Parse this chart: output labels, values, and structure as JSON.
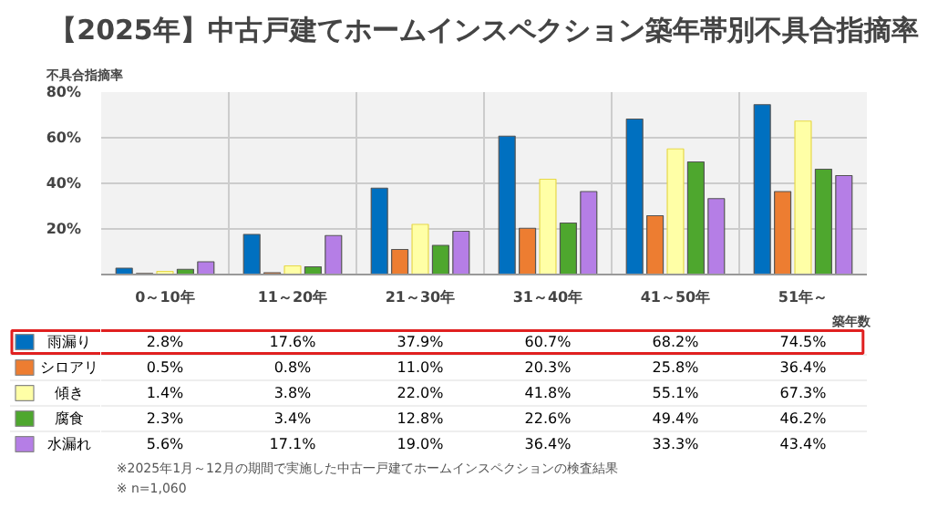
{
  "chart_data": {
    "type": "bar",
    "title": "【2025年】中古戸建てホームインスペクション築年帯別不具合指摘率",
    "ylabel": "不具合指摘率",
    "xlabel": "築年数",
    "categories": [
      "0～10年",
      "11～20年",
      "21～30年",
      "31～40年",
      "41～50年",
      "51年～"
    ],
    "ylim": [
      0,
      80
    ],
    "yticks": [
      {
        "value": 0,
        "label": null
      },
      {
        "value": 20,
        "label": "20%"
      },
      {
        "value": 40,
        "label": "40%"
      },
      {
        "value": 60,
        "label": "60%"
      },
      {
        "value": 80,
        "label": "80%"
      }
    ],
    "grid": true,
    "legend": "bottom",
    "series": [
      {
        "name": "雨漏り",
        "color": "#0070c0",
        "values": [
          2.8,
          17.6,
          37.9,
          60.7,
          68.2,
          74.5
        ],
        "value_labels": [
          "2.8%",
          "17.6%",
          "37.9%",
          "60.7%",
          "68.2%",
          "74.5%"
        ]
      },
      {
        "name": "シロアリ",
        "color": "#ed7d31",
        "values": [
          0.5,
          0.8,
          11.0,
          20.3,
          25.8,
          36.4
        ],
        "value_labels": [
          "0.5%",
          "0.8%",
          "11.0%",
          "20.3%",
          "25.8%",
          "36.4%"
        ]
      },
      {
        "name": "傾き",
        "color": "#ffffa6",
        "values": [
          1.4,
          3.8,
          22.0,
          41.8,
          55.1,
          67.3
        ],
        "value_labels": [
          "1.4%",
          "3.8%",
          "22.0%",
          "41.8%",
          "55.1%",
          "67.3%"
        ]
      },
      {
        "name": "腐食",
        "color": "#4ea72e",
        "values": [
          2.3,
          3.4,
          12.8,
          22.6,
          49.4,
          46.2
        ],
        "value_labels": [
          "2.3%",
          "3.4%",
          "12.8%",
          "22.6%",
          "49.4%",
          "46.2%"
        ]
      },
      {
        "name": "水漏れ",
        "color": "#b57ee6",
        "values": [
          5.6,
          17.1,
          19.0,
          36.4,
          33.3,
          43.4
        ],
        "value_labels": [
          "5.6%",
          "17.1%",
          "19.0%",
          "36.4%",
          "33.3%",
          "43.4%"
        ]
      }
    ],
    "annotations": [
      "※2025年1月～12月の期間で実施した中古一戸建てホームインスペクションの検査結果",
      "※ n=1,060"
    ]
  }
}
